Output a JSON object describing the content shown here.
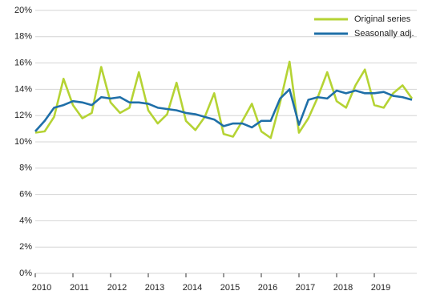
{
  "chart_data": {
    "type": "line",
    "categories": [
      "2010",
      null,
      null,
      null,
      "2011",
      null,
      null,
      null,
      "2012",
      null,
      null,
      null,
      "2013",
      null,
      null,
      null,
      "2014",
      null,
      null,
      null,
      "2015",
      null,
      null,
      null,
      "2016",
      null,
      null,
      null,
      "2017",
      null,
      null,
      null,
      "2018",
      null,
      null,
      null,
      "2019",
      null,
      null,
      null,
      null
    ],
    "series": [
      {
        "name": "Original series",
        "color": "#b5d334",
        "values": [
          10.7,
          10.8,
          11.9,
          14.8,
          12.8,
          11.8,
          12.2,
          15.7,
          13.0,
          12.2,
          12.6,
          15.3,
          12.4,
          11.4,
          12.1,
          14.5,
          11.6,
          10.9,
          11.9,
          13.7,
          10.6,
          10.4,
          11.6,
          12.9,
          10.8,
          10.3,
          13.0,
          16.1,
          10.7,
          11.8,
          13.4,
          15.3,
          13.1,
          12.6,
          14.3,
          15.5,
          12.8,
          12.6,
          13.7,
          14.3,
          13.3
        ]
      },
      {
        "name": "Seasonally adj.",
        "color": "#1f6fa8",
        "values": [
          10.8,
          11.6,
          12.6,
          12.8,
          13.1,
          13.0,
          12.8,
          13.4,
          13.3,
          13.4,
          13.0,
          13.0,
          12.9,
          12.6,
          12.5,
          12.4,
          12.2,
          12.1,
          11.9,
          11.7,
          11.2,
          11.4,
          11.4,
          11.1,
          11.6,
          11.6,
          13.3,
          14.0,
          11.3,
          13.2,
          13.4,
          13.3,
          13.9,
          13.7,
          13.9,
          13.7,
          13.7,
          13.8,
          13.5,
          13.4,
          13.2
        ]
      }
    ],
    "ylim": [
      0,
      20
    ],
    "yticks": [
      {
        "value": 0,
        "label": "0%"
      },
      {
        "value": 2,
        "label": "2%"
      },
      {
        "value": 4,
        "label": "4%"
      },
      {
        "value": 6,
        "label": "6%"
      },
      {
        "value": 8,
        "label": "8%"
      },
      {
        "value": 10,
        "label": "10%"
      },
      {
        "value": 12,
        "label": "12%"
      },
      {
        "value": 14,
        "label": "14%"
      },
      {
        "value": 16,
        "label": "16%"
      },
      {
        "value": 18,
        "label": "18%"
      },
      {
        "value": 20,
        "label": "20%"
      }
    ],
    "grid": true,
    "legend": "top-right"
  }
}
